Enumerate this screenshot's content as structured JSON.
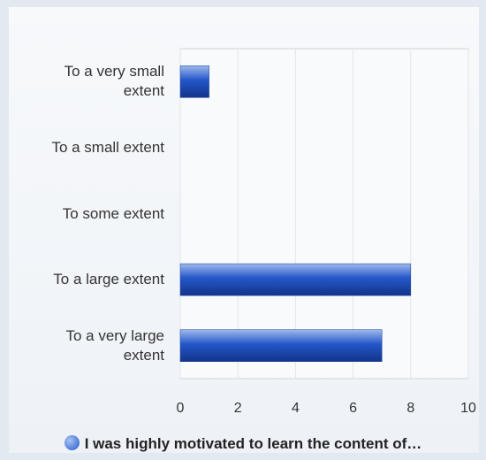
{
  "chart_data": {
    "type": "bar",
    "orientation": "horizontal",
    "categories": [
      "To a very small extent",
      "To a small extent",
      "To some extent",
      "To a large extent",
      "To a very large extent"
    ],
    "series": [
      {
        "name": "I was highly motivated to learn the content of…",
        "color": "#2457c8",
        "values": [
          1,
          0,
          0,
          8,
          7
        ]
      }
    ],
    "xlim": [
      0,
      10
    ],
    "xticks": [
      0,
      2,
      4,
      6,
      8,
      10
    ],
    "grid": true
  }
}
